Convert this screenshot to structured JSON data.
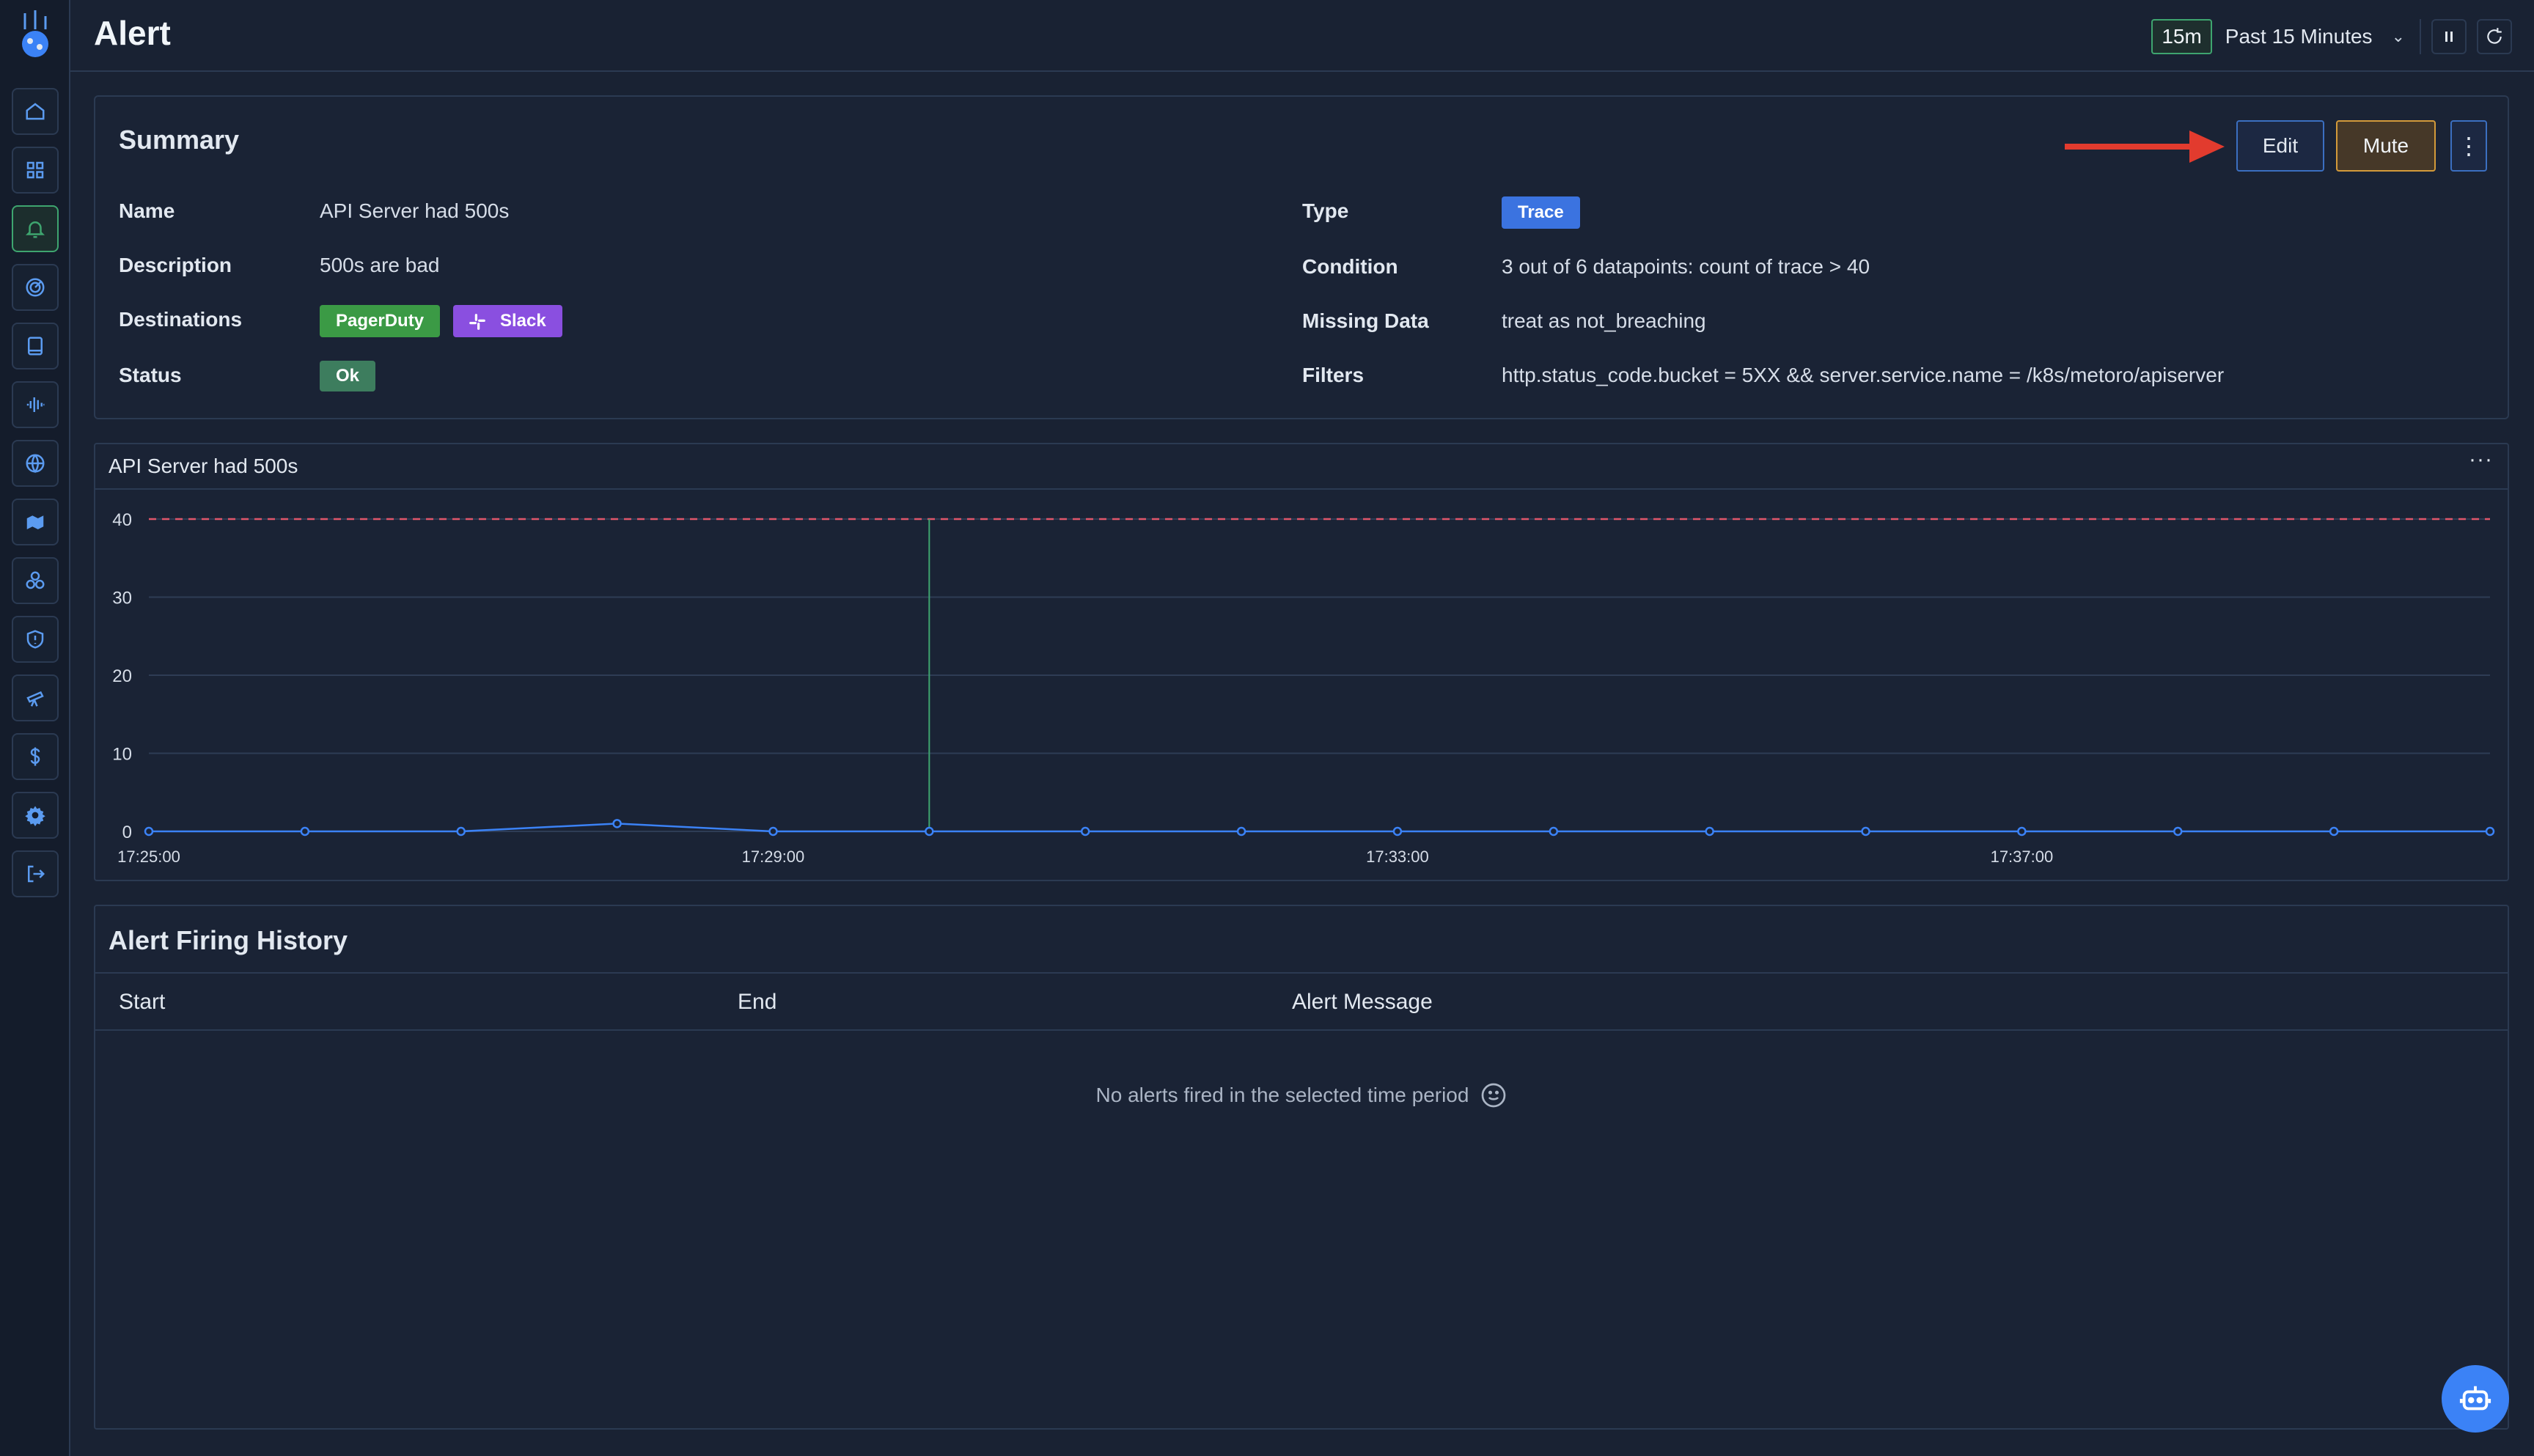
{
  "header": {
    "title": "Alert",
    "time_chip": "15m",
    "time_range": "Past 15 Minutes"
  },
  "sidebar": {
    "items": [
      {
        "icon": "home-icon"
      },
      {
        "icon": "dashboard-icon"
      },
      {
        "icon": "bell-icon",
        "active": true
      },
      {
        "icon": "radar-icon"
      },
      {
        "icon": "book-icon"
      },
      {
        "icon": "waveform-icon"
      },
      {
        "icon": "globe-icon"
      },
      {
        "icon": "map-icon"
      },
      {
        "icon": "cluster-icon"
      },
      {
        "icon": "shield-icon"
      },
      {
        "icon": "telescope-icon"
      },
      {
        "icon": "dollar-icon"
      },
      {
        "icon": "gear-icon"
      },
      {
        "icon": "logout-icon"
      }
    ]
  },
  "summary": {
    "title": "Summary",
    "labels": {
      "name": "Name",
      "description": "Description",
      "destinations": "Destinations",
      "status": "Status",
      "type": "Type",
      "condition": "Condition",
      "missing_data": "Missing Data",
      "filters": "Filters"
    },
    "values": {
      "name": "API Server had 500s",
      "description": "500s are bad",
      "destination_1": "PagerDuty",
      "destination_2": "Slack",
      "status": "Ok",
      "type": "Trace",
      "condition": "3 out of 6 datapoints: count of trace > 40",
      "missing_data": "treat as not_breaching",
      "filters": "http.status_code.bucket = 5XX && server.service.name = /k8s/metoro/apiserver"
    },
    "buttons": {
      "edit": "Edit",
      "mute": "Mute",
      "more": "⋮"
    },
    "colors": {
      "pagerduty": "#3b9a45",
      "slack": "#8a4fe0",
      "ok": "#3d7d5e",
      "trace": "#3b73e0",
      "annotation_arrow": "#e23b2e"
    }
  },
  "chart_panel": {
    "title": "API Server had 500s",
    "menu": "···"
  },
  "chart_data": {
    "type": "line",
    "title": "API Server had 500s",
    "x": [
      "17:25:00",
      "17:26:00",
      "17:27:00",
      "17:28:00",
      "17:29:00",
      "17:30:00",
      "17:31:00",
      "17:32:00",
      "17:33:00",
      "17:34:00",
      "17:35:00",
      "17:36:00",
      "17:37:00",
      "17:38:00",
      "17:39:00",
      "17:40:00"
    ],
    "x_tick_labels": [
      "17:25:00",
      "17:29:00",
      "17:33:00",
      "17:37:00"
    ],
    "series": [
      {
        "values": [
          0,
          0,
          0,
          1,
          0,
          0,
          0,
          0,
          0,
          0,
          0,
          0,
          0,
          0,
          0,
          0
        ],
        "color": "#3b82f6"
      }
    ],
    "threshold": {
      "value": 40,
      "color": "#e0566b",
      "style": "dashed"
    },
    "marker_line": {
      "x": "17:30:00",
      "color": "#3ea56f"
    },
    "ylim": [
      0,
      40
    ],
    "y_ticks": [
      0,
      10,
      20,
      30,
      40
    ],
    "grid": true,
    "xlabel": "",
    "ylabel": ""
  },
  "history": {
    "title": "Alert Firing History",
    "columns": [
      "Start",
      "End",
      "Alert Message"
    ],
    "empty_message": "No alerts fired in the selected time period"
  }
}
